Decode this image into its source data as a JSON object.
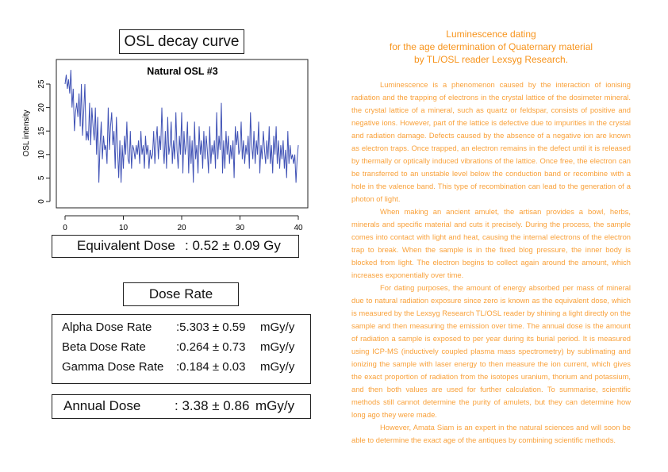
{
  "left": {
    "osl_title": "OSL decay curve",
    "equivalent_dose": {
      "label": "Equivalent Dose",
      "value": ": 0.52 ± 0.09 Gy"
    },
    "dose_rate_title": "Dose Rate",
    "dose_rates": [
      {
        "label": "Alpha Dose Rate",
        "value": ":5.303 ± 0.59",
        "unit": "mGy/y"
      },
      {
        "label": "Beta Dose Rate",
        "value": ":0.264 ± 0.73",
        "unit": "mGy/y"
      },
      {
        "label": "Gamma Dose Rate",
        "value": ":0.184 ± 0.03",
        "unit": "mGy/y"
      }
    ],
    "annual_dose": {
      "label": "Annual Dose",
      "value": ": 3.38 ± 0.86",
      "unit": "mGy/y"
    }
  },
  "chart_data": {
    "type": "line",
    "title": "Natural OSL #3",
    "xlabel": "",
    "ylabel": "OSL intensity",
    "xlim": [
      0,
      40
    ],
    "ylim": [
      0,
      27
    ],
    "xticks": [
      0,
      10,
      20,
      30,
      40
    ],
    "yticks": [
      0,
      5,
      10,
      15,
      20,
      25
    ],
    "color": "#3f51b5",
    "x_start": 0,
    "x_step": 0.2,
    "values": [
      25,
      27,
      24,
      26,
      23,
      28,
      20,
      24,
      15,
      19,
      21,
      18,
      23,
      16,
      25,
      14,
      19,
      25,
      13,
      15,
      13,
      21,
      12,
      20,
      16,
      13,
      20,
      10,
      18,
      4,
      12,
      17,
      9,
      14,
      11,
      12,
      8,
      20,
      11,
      16,
      19,
      12,
      15,
      7,
      18,
      11,
      5,
      13,
      4,
      12,
      7,
      14,
      10,
      17,
      9,
      8,
      15,
      7,
      12,
      11,
      9,
      12,
      10,
      13,
      8,
      15,
      10,
      12,
      7,
      14,
      10,
      12,
      7,
      11,
      9,
      10,
      15,
      8,
      13,
      16,
      9,
      14,
      11,
      20,
      12,
      8,
      15,
      7,
      18,
      10,
      12,
      17,
      8,
      13,
      9,
      19,
      11,
      7,
      14,
      10,
      19,
      6,
      15,
      10,
      12,
      17,
      6,
      14,
      8,
      13,
      4,
      17,
      9,
      12,
      6,
      16,
      10,
      13,
      7,
      15,
      9,
      14,
      11,
      6,
      16,
      8,
      12,
      10,
      13,
      7,
      19,
      9,
      14,
      11,
      21,
      6,
      13,
      7,
      15,
      10,
      14,
      8,
      12,
      9,
      13,
      5,
      16,
      12,
      15,
      10,
      11,
      17,
      9,
      13,
      8,
      12,
      10,
      14,
      7,
      19,
      12,
      9,
      15,
      8,
      13,
      10,
      17,
      6,
      12,
      9,
      15,
      11,
      8,
      13,
      9,
      16,
      8,
      12,
      6,
      14,
      10,
      16,
      8,
      13,
      7,
      12,
      9,
      13,
      7,
      11,
      5,
      15,
      8,
      12,
      9,
      10,
      8,
      10,
      4,
      9,
      12
    ]
  },
  "right": {
    "title_lines": [
      "Luminescence dating",
      "for the age determination of Quaternary material",
      "by TL/OSL reader Lexsyg Research."
    ],
    "paragraphs": [
      "Luminescence is a phenomenon caused by the interaction of ionising radiation and the trapping of electrons in the crystal lattice of the dosimeter mineral. the crystal lattice of a mineral, such as quartz or feldspar, consists of positive and negative ions. However, part of the lattice is defective due to impurities in the crystal and radiation damage. Defects caused by the absence of a negative ion are known as electron traps. Once trapped, an electron remains in the defect until it is released by thermally or optically induced vibrations of the lattice. Once free, the electron can be transferred to an unstable level below the conduction band or recombine with a hole in the valence band. This type of recombination can lead to the generation of a photon of light.",
      "When making an ancient amulet, the artisan provides a bowl, herbs, minerals and specific material and cuts it precisely. During the process, the sample comes into contact with light and heat, causing the internal electrons of the electron trap to break. When the sample is in the fixed blog pressure, the inner body is blocked from light. The electron begins to collect again around the amount, which increases exponentially over time.",
      "For dating purposes, the amount of energy absorbed per mass of mineral due to natural radiation exposure since zero is known as the equivalent dose, which is measured by the Lexsyg Research TL/OSL reader by shining a light directly on the sample and then measuring the emission over time. The annual dose is the amount of radiation a sample is exposed to per year during its burial period. It is measured using ICP-MS (inductively coupled plasma mass spectrometry) by sublimating and ionizing the sample with laser energy to then measure the ion current, which gives the exact proportion of radiation from the isotopes uranium, thorium and potassium, and then both values are used for further calculation. To summarise, scientific methods still cannot determine the purity of amulets, but they can determine how long ago they were made.",
      "However, Amata Siam is an expert in the natural sciences and will soon be able to determine the exact age of the antiques by combining scientific methods."
    ]
  }
}
